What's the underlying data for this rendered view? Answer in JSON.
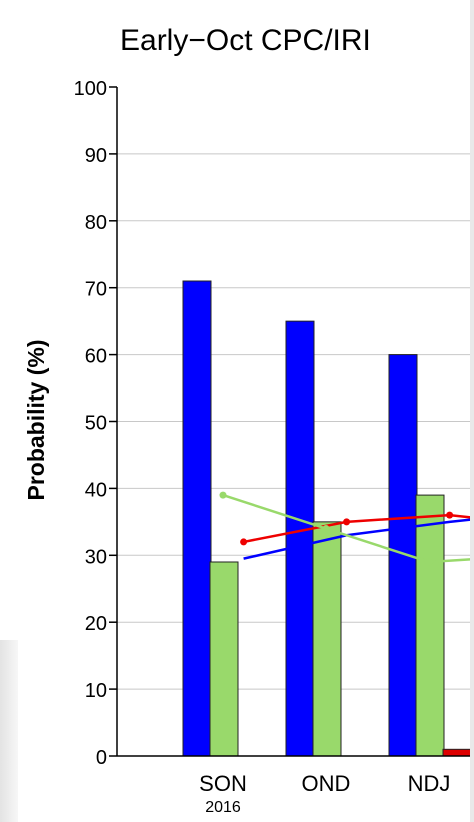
{
  "chart_data": {
    "type": "bar",
    "title": "Early−Oct CPC/IRI",
    "ylabel": "Probability (%)",
    "xlabel": "",
    "ylim": [
      0,
      100
    ],
    "yticks": [
      0,
      10,
      20,
      30,
      40,
      50,
      60,
      70,
      80,
      90,
      100
    ],
    "grid": true,
    "categories": [
      "SON",
      "OND",
      "NDJ"
    ],
    "category_sublabels": [
      "2016",
      "",
      ""
    ],
    "series": [
      {
        "values": [
          71,
          65,
          60
        ],
        "color": "#0000ff"
      },
      {
        "values": [
          29,
          35,
          39
        ],
        "color": "#99d96b"
      },
      {
        "values": [
          0,
          0,
          1
        ],
        "color": "#dd0000"
      }
    ],
    "lines": [
      {
        "color": "#0000ff",
        "points": [
          [
            0.2,
            29.5
          ],
          [
            1.2,
            33
          ],
          [
            2.2,
            35
          ],
          [
            2.5,
            35.5
          ]
        ]
      },
      {
        "color": "#ee0000",
        "points": [
          [
            0.2,
            32
          ],
          [
            1.2,
            35
          ],
          [
            2.2,
            36
          ],
          [
            2.5,
            35.5
          ]
        ],
        "markers": true
      },
      {
        "color": "#99d96b",
        "points": [
          [
            0.0,
            39
          ],
          [
            1.0,
            34
          ],
          [
            2.0,
            29
          ],
          [
            2.5,
            29.5
          ]
        ],
        "markers": true
      }
    ]
  }
}
